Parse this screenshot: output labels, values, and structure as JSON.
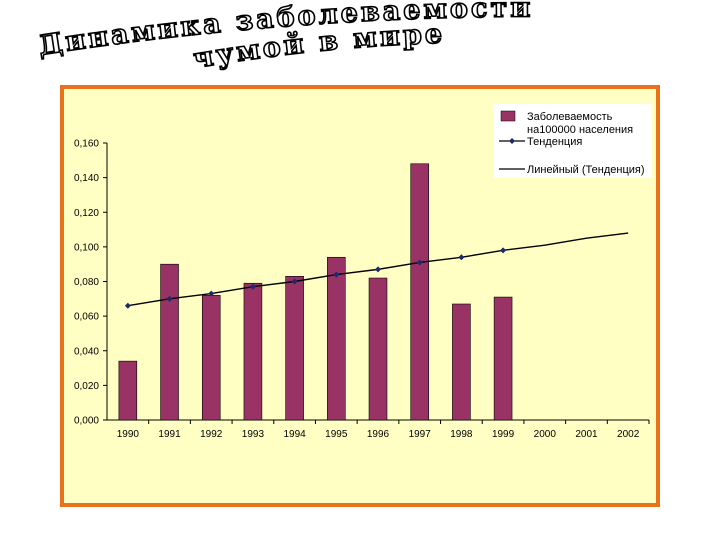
{
  "title": {
    "line1": "Динамика заболеваемости",
    "line2": "чумой в мире"
  },
  "colors": {
    "frame_border": "#e8731a",
    "plot_background": "#ffffc4",
    "bar_fill": "#993366",
    "line_color": "#000000"
  },
  "chart_data": {
    "type": "bar",
    "categories": [
      "1990",
      "1991",
      "1992",
      "1993",
      "1994",
      "1995",
      "1996",
      "1997",
      "1998",
      "1999",
      "2000",
      "2001",
      "2002"
    ],
    "series": [
      {
        "name": "Заболеваемость на100000 населения",
        "kind": "bar",
        "values": [
          0.034,
          0.09,
          0.072,
          0.079,
          0.083,
          0.094,
          0.082,
          0.148,
          0.067,
          0.071,
          null,
          null,
          null
        ]
      },
      {
        "name": "Тенденция",
        "kind": "line-markers",
        "values": [
          0.066,
          0.07,
          0.073,
          0.077,
          0.08,
          0.084,
          0.087,
          0.091,
          0.094,
          0.098,
          null,
          null,
          null
        ]
      },
      {
        "name": "Линейный (Тенденция)",
        "kind": "trendline",
        "values": [
          0.066,
          0.07,
          0.073,
          0.077,
          0.08,
          0.084,
          0.087,
          0.091,
          0.094,
          0.098,
          0.101,
          0.105,
          0.108
        ]
      }
    ],
    "yticks": [
      "0,000",
      "0,020",
      "0,040",
      "0,060",
      "0,080",
      "0,100",
      "0,120",
      "0,140",
      "0,160"
    ],
    "ylim": [
      0,
      0.16
    ],
    "legend_position": "top-right",
    "legend": {
      "bar_label_line1": "Заболеваемость",
      "bar_label_line2": "на100000 населения",
      "marker_label": "Тенденция",
      "trend_label": "Линейный (Тенденция)"
    },
    "grid": false
  }
}
